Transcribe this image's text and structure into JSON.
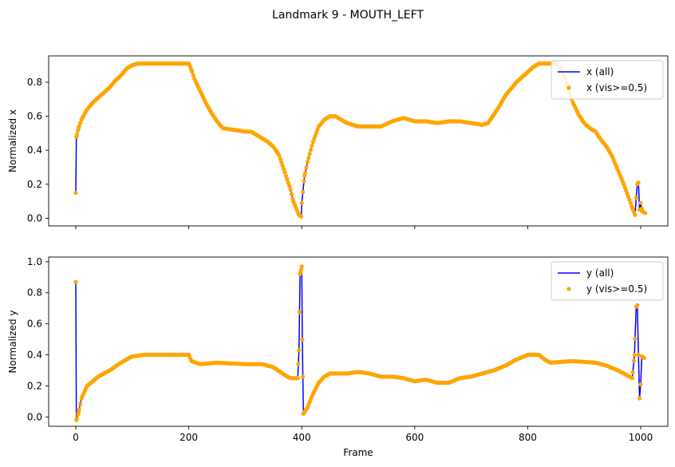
{
  "figure_title": "Landmark 9 - MOUTH_LEFT",
  "colors": {
    "line": "#0000ff",
    "points": "#ffa500",
    "axis": "#000000"
  },
  "chart_data": [
    {
      "type": "line",
      "ylabel": "Normalized x",
      "xlabel": "",
      "xlim": [
        -48,
        1048
      ],
      "ylim": [
        -0.045,
        0.955
      ],
      "xticks": [
        0,
        200,
        400,
        600,
        800,
        1000
      ],
      "xtick_labels_visible": false,
      "yticks": [
        0.0,
        0.2,
        0.4,
        0.6,
        0.8
      ],
      "ytick_labels": [
        "0.0",
        "0.2",
        "0.4",
        "0.6",
        "0.8"
      ],
      "grid": false,
      "legend_position": "top-right",
      "legend": [
        "x (all)",
        "x (vis>=0.5)"
      ],
      "keyframes": [
        [
          0,
          0.15
        ],
        [
          1,
          0.48
        ],
        [
          5,
          0.53
        ],
        [
          10,
          0.58
        ],
        [
          20,
          0.64
        ],
        [
          30,
          0.68
        ],
        [
          40,
          0.71
        ],
        [
          50,
          0.74
        ],
        [
          60,
          0.77
        ],
        [
          70,
          0.81
        ],
        [
          80,
          0.84
        ],
        [
          90,
          0.88
        ],
        [
          100,
          0.9
        ],
        [
          110,
          0.91
        ],
        [
          150,
          0.91
        ],
        [
          190,
          0.91
        ],
        [
          200,
          0.91
        ],
        [
          205,
          0.87
        ],
        [
          210,
          0.82
        ],
        [
          220,
          0.75
        ],
        [
          230,
          0.68
        ],
        [
          240,
          0.62
        ],
        [
          250,
          0.57
        ],
        [
          260,
          0.53
        ],
        [
          280,
          0.52
        ],
        [
          300,
          0.51
        ],
        [
          310,
          0.51
        ],
        [
          320,
          0.49
        ],
        [
          330,
          0.47
        ],
        [
          340,
          0.45
        ],
        [
          350,
          0.42
        ],
        [
          360,
          0.37
        ],
        [
          370,
          0.27
        ],
        [
          380,
          0.17
        ],
        [
          385,
          0.1
        ],
        [
          390,
          0.06
        ],
        [
          395,
          0.02
        ],
        [
          399,
          0.01
        ],
        [
          400,
          0.09
        ],
        [
          405,
          0.25
        ],
        [
          410,
          0.33
        ],
        [
          420,
          0.45
        ],
        [
          430,
          0.54
        ],
        [
          440,
          0.58
        ],
        [
          450,
          0.6
        ],
        [
          460,
          0.6
        ],
        [
          480,
          0.56
        ],
        [
          500,
          0.54
        ],
        [
          540,
          0.54
        ],
        [
          560,
          0.57
        ],
        [
          580,
          0.59
        ],
        [
          600,
          0.57
        ],
        [
          620,
          0.57
        ],
        [
          640,
          0.56
        ],
        [
          660,
          0.57
        ],
        [
          680,
          0.57
        ],
        [
          700,
          0.56
        ],
        [
          720,
          0.55
        ],
        [
          730,
          0.56
        ],
        [
          750,
          0.66
        ],
        [
          760,
          0.72
        ],
        [
          780,
          0.8
        ],
        [
          800,
          0.86
        ],
        [
          810,
          0.89
        ],
        [
          820,
          0.91
        ],
        [
          850,
          0.91
        ],
        [
          860,
          0.88
        ],
        [
          870,
          0.78
        ],
        [
          880,
          0.68
        ],
        [
          890,
          0.61
        ],
        [
          900,
          0.56
        ],
        [
          910,
          0.53
        ],
        [
          920,
          0.51
        ],
        [
          930,
          0.46
        ],
        [
          940,
          0.42
        ],
        [
          950,
          0.36
        ],
        [
          960,
          0.28
        ],
        [
          970,
          0.2
        ],
        [
          980,
          0.11
        ],
        [
          985,
          0.06
        ],
        [
          990,
          0.02
        ],
        [
          992,
          0.12
        ],
        [
          994,
          0.2
        ],
        [
          996,
          0.21
        ],
        [
          998,
          0.05
        ],
        [
          1000,
          0.09
        ],
        [
          1003,
          0.04
        ],
        [
          1008,
          0.03
        ]
      ],
      "series": [
        {
          "name": "x (all)",
          "style": "line"
        },
        {
          "name": "x (vis>=0.5)",
          "style": "points"
        }
      ]
    },
    {
      "type": "line",
      "ylabel": "Normalized y",
      "xlabel": "Frame",
      "xlim": [
        -48,
        1048
      ],
      "ylim": [
        -0.06,
        1.03
      ],
      "xticks": [
        0,
        200,
        400,
        600,
        800,
        1000
      ],
      "xtick_labels": [
        "0",
        "200",
        "400",
        "600",
        "800",
        "1000"
      ],
      "yticks": [
        0.0,
        0.2,
        0.4,
        0.6,
        0.8,
        1.0
      ],
      "ytick_labels": [
        "0.0",
        "0.2",
        "0.4",
        "0.6",
        "0.8",
        "1.0"
      ],
      "grid": false,
      "legend_position": "top-right",
      "legend": [
        "y (all)",
        "y (vis>=0.5)"
      ],
      "keyframes": [
        [
          0,
          0.87
        ],
        [
          1,
          -0.02
        ],
        [
          5,
          0.03
        ],
        [
          10,
          0.12
        ],
        [
          20,
          0.2
        ],
        [
          40,
          0.26
        ],
        [
          60,
          0.3
        ],
        [
          80,
          0.35
        ],
        [
          100,
          0.39
        ],
        [
          120,
          0.4
        ],
        [
          200,
          0.4
        ],
        [
          205,
          0.36
        ],
        [
          220,
          0.34
        ],
        [
          250,
          0.35
        ],
        [
          300,
          0.34
        ],
        [
          330,
          0.34
        ],
        [
          350,
          0.32
        ],
        [
          370,
          0.27
        ],
        [
          380,
          0.25
        ],
        [
          393,
          0.25
        ],
        [
          395,
          0.43
        ],
        [
          397,
          0.92
        ],
        [
          399,
          0.95
        ],
        [
          400,
          0.97
        ],
        [
          401,
          0.5
        ],
        [
          403,
          0.02
        ],
        [
          410,
          0.06
        ],
        [
          420,
          0.15
        ],
        [
          430,
          0.22
        ],
        [
          440,
          0.26
        ],
        [
          450,
          0.28
        ],
        [
          480,
          0.28
        ],
        [
          500,
          0.29
        ],
        [
          520,
          0.28
        ],
        [
          540,
          0.26
        ],
        [
          560,
          0.26
        ],
        [
          580,
          0.25
        ],
        [
          600,
          0.23
        ],
        [
          620,
          0.24
        ],
        [
          640,
          0.22
        ],
        [
          660,
          0.22
        ],
        [
          680,
          0.25
        ],
        [
          700,
          0.26
        ],
        [
          720,
          0.28
        ],
        [
          740,
          0.3
        ],
        [
          760,
          0.33
        ],
        [
          780,
          0.37
        ],
        [
          800,
          0.4
        ],
        [
          820,
          0.4
        ],
        [
          830,
          0.37
        ],
        [
          840,
          0.35
        ],
        [
          880,
          0.36
        ],
        [
          920,
          0.35
        ],
        [
          940,
          0.33
        ],
        [
          960,
          0.3
        ],
        [
          970,
          0.28
        ],
        [
          985,
          0.25
        ],
        [
          989,
          0.4
        ],
        [
          992,
          0.71
        ],
        [
          994,
          0.72
        ],
        [
          996,
          0.4
        ],
        [
          998,
          0.12
        ],
        [
          1000,
          0.21
        ],
        [
          1002,
          0.39
        ],
        [
          1006,
          0.38
        ]
      ],
      "series": [
        {
          "name": "y (all)",
          "style": "line"
        },
        {
          "name": "y (vis>=0.5)",
          "style": "points"
        }
      ]
    }
  ]
}
